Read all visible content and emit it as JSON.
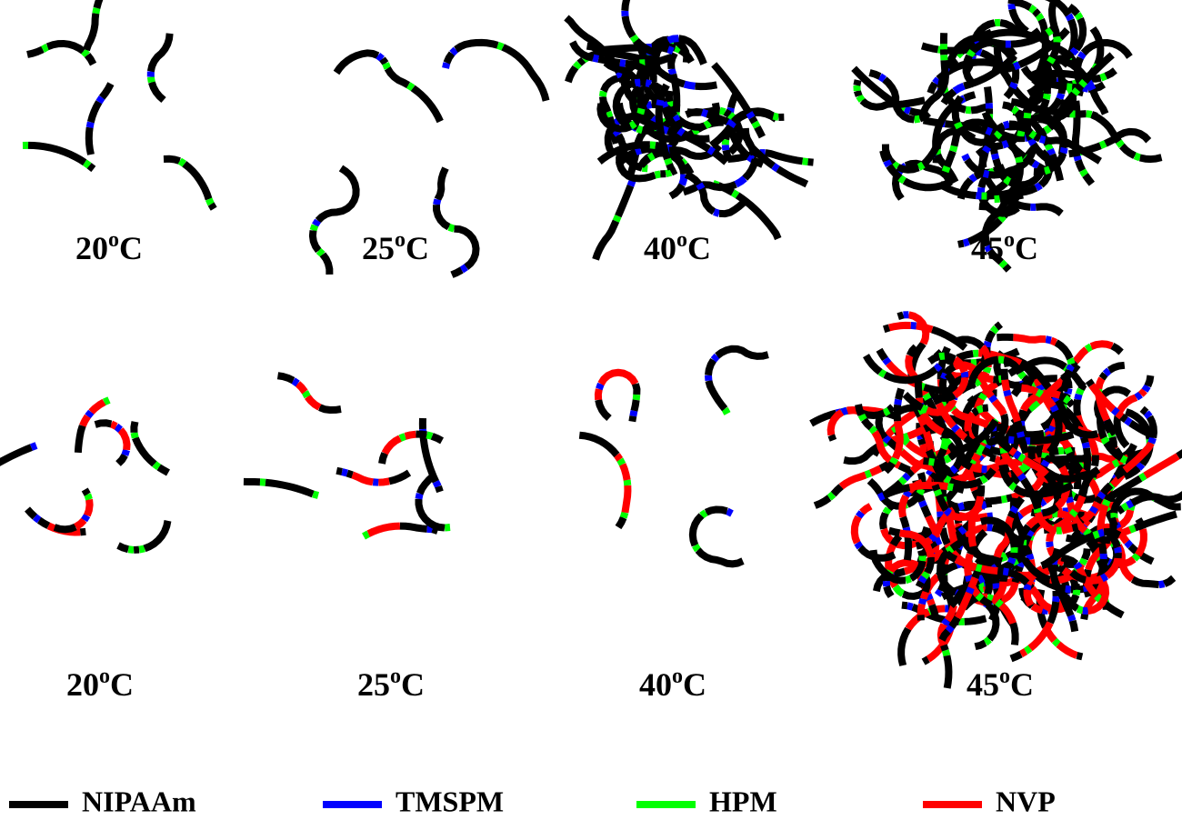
{
  "panels": [
    {
      "label": {
        "number": "20",
        "degree": "o",
        "unit": "C"
      }
    },
    {
      "label": {
        "number": "25",
        "degree": "o",
        "unit": "C"
      }
    },
    {
      "label": {
        "number": "40",
        "degree": "o",
        "unit": "C"
      }
    },
    {
      "label": {
        "number": "45",
        "degree": "o",
        "unit": "C"
      }
    },
    {
      "label": {
        "number": "20",
        "degree": "o",
        "unit": "C"
      }
    },
    {
      "label": {
        "number": "25",
        "degree": "o",
        "unit": "C"
      }
    },
    {
      "label": {
        "number": "40",
        "degree": "o",
        "unit": "C"
      }
    },
    {
      "label": {
        "number": "45",
        "degree": "o",
        "unit": "C"
      }
    }
  ],
  "legend": [
    {
      "name": "NIPAAm",
      "color": "#000000"
    },
    {
      "name": "TMSPM",
      "color": "#0000ff"
    },
    {
      "name": "HPM",
      "color": "#00ff00"
    },
    {
      "name": "NVP",
      "color": "#ff0000"
    }
  ]
}
